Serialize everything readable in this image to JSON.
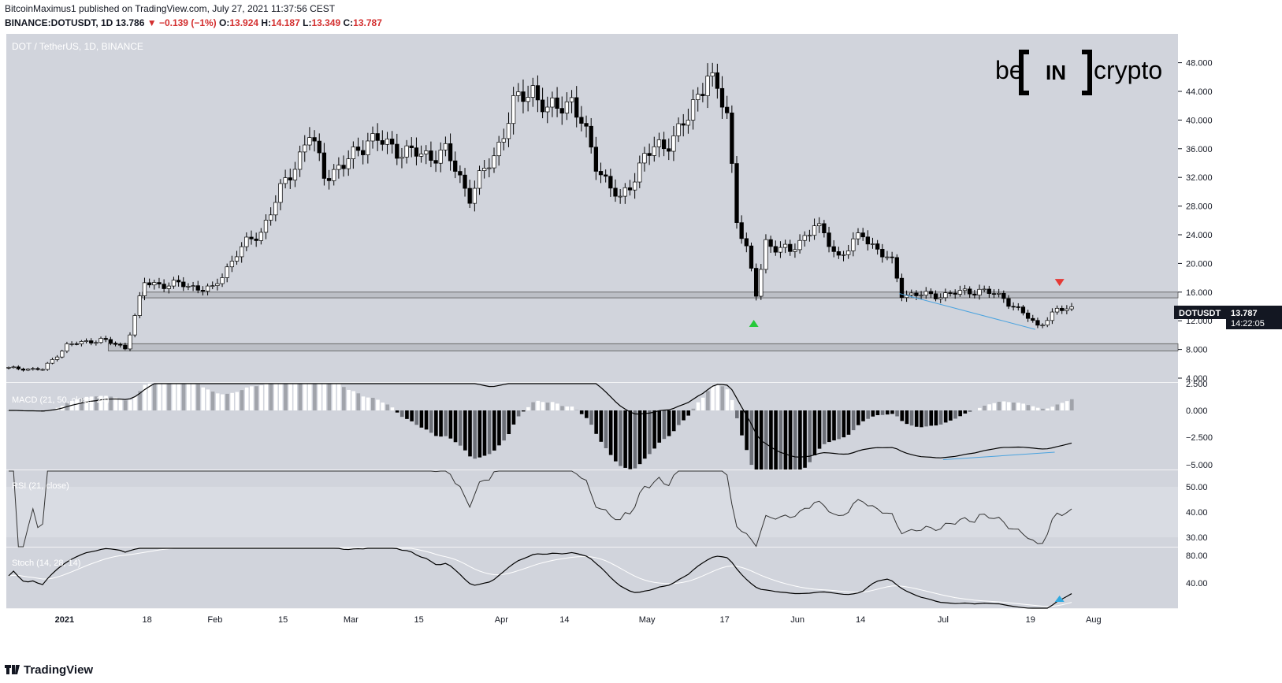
{
  "header": {
    "line1": "BitcoinMaximus1 published on TradingView.com, July 27, 2021 11:37:56 CEST",
    "symbol": "BINANCE:DOTUSDT, 1D",
    "last": "13.786",
    "change": "▼ −0.139 (−1%)",
    "o_label": "O:",
    "o": "13.924",
    "h_label": "H:",
    "h": "14.187",
    "l_label": "L:",
    "l": "13.349",
    "c_label": "C:",
    "c": "13.787"
  },
  "chart_title": "DOT / TetherUS, 1D, BINANCE",
  "brand": {
    "be": "be",
    "in": "IN",
    "crypto": "crypto"
  },
  "footer": {
    "label": "TradingView"
  },
  "price_label": {
    "symbol": "DOTUSDT",
    "value": "13.787",
    "countdown": "14:22:05"
  },
  "colors": {
    "bg_panel": "#d1d4dc",
    "candle_up": "#ffffff",
    "candle_down": "#000000",
    "support_zone": "#bcbfc6",
    "green_arrow": "#26c93a",
    "red_arrow": "#e53935",
    "divergence": "#4aa3df",
    "blue_arrow": "#2fa9e0",
    "stoch_signal": "#ffffff"
  },
  "chart_data": {
    "type": "candlestick",
    "title": "DOT / TetherUS, 1D, BINANCE",
    "price_axis": {
      "unit": "USDT",
      "ticks": [
        "48.000",
        "44.000",
        "40.000",
        "36.000",
        "32.000",
        "28.000",
        "24.000",
        "20.000",
        "16.000",
        "12.000",
        "8.000",
        "4.000"
      ]
    },
    "time_axis_labels": [
      "2021",
      "18",
      "Feb",
      "15",
      "Mar",
      "15",
      "Apr",
      "14",
      "May",
      "17",
      "Jun",
      "14",
      "Jul",
      "19",
      "Aug"
    ],
    "approx_close_path": [
      [
        "2020-12-20",
        5.4
      ],
      [
        "2020-12-27",
        5.2
      ],
      [
        "2021-01-01",
        8.6
      ],
      [
        "2021-01-08",
        9.4
      ],
      [
        "2021-01-13",
        8.2
      ],
      [
        "2021-01-17",
        17.2
      ],
      [
        "2021-01-25",
        17.0
      ],
      [
        "2021-01-31",
        16.3
      ],
      [
        "2021-02-05",
        21.5
      ],
      [
        "2021-02-10",
        24.5
      ],
      [
        "2021-02-14",
        30.0
      ],
      [
        "2021-02-18",
        35.2
      ],
      [
        "2021-02-20",
        38.0
      ],
      [
        "2021-02-23",
        32.5
      ],
      [
        "2021-02-27",
        33.5
      ],
      [
        "2021-03-04",
        37.5
      ],
      [
        "2021-03-10",
        36.0
      ],
      [
        "2021-03-15",
        35.0
      ],
      [
        "2021-03-20",
        35.5
      ],
      [
        "2021-03-25",
        29.5
      ],
      [
        "2021-03-30",
        35.0
      ],
      [
        "2021-04-03",
        42.0
      ],
      [
        "2021-04-07",
        44.5
      ],
      [
        "2021-04-10",
        41.0
      ],
      [
        "2021-04-15",
        43.0
      ],
      [
        "2021-04-20",
        34.0
      ],
      [
        "2021-04-25",
        28.5
      ],
      [
        "2021-04-30",
        35.0
      ],
      [
        "2021-05-04",
        36.5
      ],
      [
        "2021-05-09",
        40.0
      ],
      [
        "2021-05-13",
        47.0
      ],
      [
        "2021-05-17",
        40.5
      ],
      [
        "2021-05-19",
        26.5
      ],
      [
        "2021-05-21",
        22.0
      ],
      [
        "2021-05-23",
        15.5
      ],
      [
        "2021-05-25",
        23.0
      ],
      [
        "2021-05-30",
        21.5
      ],
      [
        "2021-06-04",
        25.5
      ],
      [
        "2021-06-09",
        21.0
      ],
      [
        "2021-06-14",
        24.0
      ],
      [
        "2021-06-20",
        20.0
      ],
      [
        "2021-06-22",
        15.8
      ],
      [
        "2021-06-28",
        15.5
      ],
      [
        "2021-07-04",
        15.9
      ],
      [
        "2021-07-08",
        16.3
      ],
      [
        "2021-07-13",
        15.2
      ],
      [
        "2021-07-20",
        11.3
      ],
      [
        "2021-07-24",
        13.4
      ],
      [
        "2021-07-27",
        13.787
      ]
    ],
    "support_zones": [
      [
        15.2,
        16.0
      ],
      [
        7.8,
        8.8
      ]
    ],
    "annotations": [
      {
        "type": "arrow-up",
        "color": "green",
        "date": "2021-05-23",
        "price": 11.8
      },
      {
        "type": "arrow-down",
        "color": "red",
        "date": "2021-07-25",
        "price": 17.5
      },
      {
        "type": "divergence-line",
        "color": "blue",
        "from": [
          "2021-06-22",
          15.8
        ],
        "to": [
          "2021-07-20",
          10.8
        ]
      }
    ],
    "macd": {
      "label": "MACD (21, 50, close, 24)",
      "ticks": [
        "2.500",
        "0.000",
        "−2.500",
        "−5.000"
      ]
    },
    "rsi": {
      "label": "RSI (21, close)",
      "ticks": [
        "50.00",
        "40.00",
        "30.00"
      ]
    },
    "stoch": {
      "label": "Stoch (14, 28, 14)",
      "ticks": [
        "80.00",
        "40.00"
      ]
    }
  }
}
